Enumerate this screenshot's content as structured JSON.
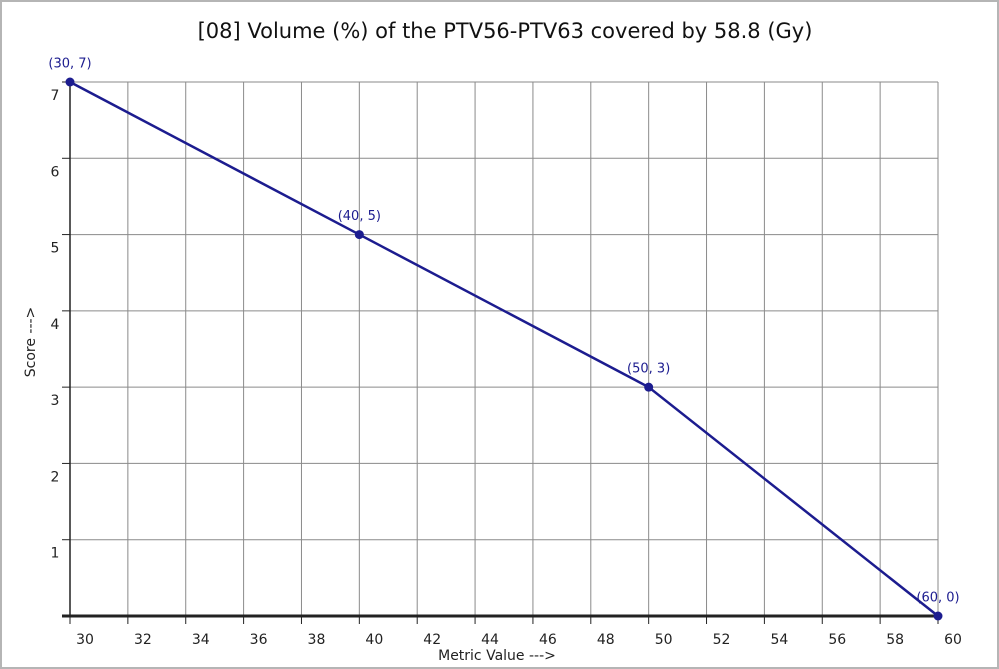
{
  "chart_data": {
    "type": "line",
    "title": "[08]  Volume (%) of the PTV56-PTV63 covered by 58.8 (Gy)",
    "x_label": "Metric Value --->",
    "y_label": "Score --->",
    "x": [
      30,
      40,
      50,
      60
    ],
    "values": [
      7,
      5,
      3,
      0
    ],
    "value_labels": [
      "(30, 7)",
      "(40, 5)",
      "(50, 3)",
      "(60, 0)"
    ],
    "color": "#1c1c8f",
    "xlim": [
      30,
      60
    ],
    "xticks": [
      30,
      32,
      34,
      36,
      38,
      40,
      42,
      44,
      46,
      48,
      50,
      52,
      54,
      56,
      58,
      60
    ],
    "ylim": [
      0,
      7
    ],
    "yticks": [
      1,
      2,
      3,
      4,
      5,
      6,
      7
    ],
    "grid": true
  }
}
